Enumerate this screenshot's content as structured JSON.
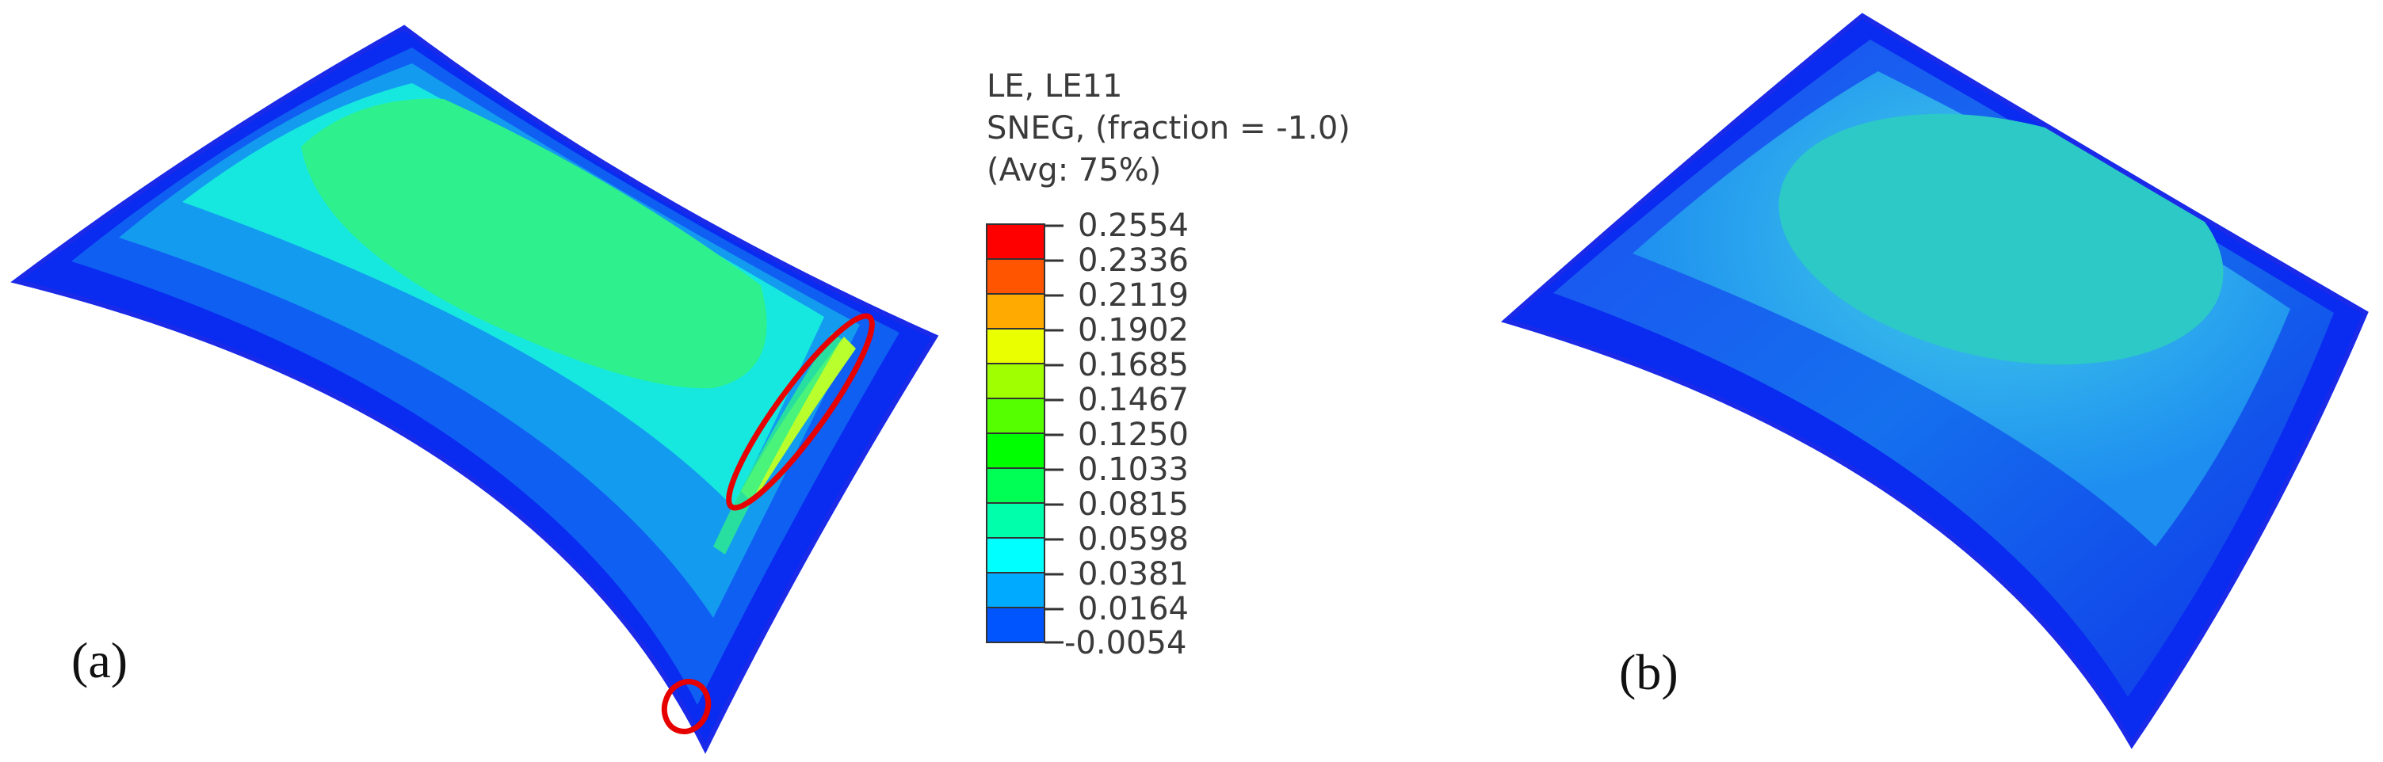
{
  "legend": {
    "header_lines": [
      "LE, LE11",
      "SNEG, (fraction = -1.0)",
      "(Avg: 75%)"
    ],
    "entries": [
      {
        "value": "0.2554",
        "color": "#ff0000"
      },
      {
        "value": "0.2336",
        "color": "#ff5500"
      },
      {
        "value": "0.2119",
        "color": "#ffaa00"
      },
      {
        "value": "0.1902",
        "color": "#eaff00"
      },
      {
        "value": "0.1685",
        "color": "#a0ff00"
      },
      {
        "value": "0.1467",
        "color": "#55ff00"
      },
      {
        "value": "0.1250",
        "color": "#00ff00"
      },
      {
        "value": "0.1033",
        "color": "#00ff55"
      },
      {
        "value": "0.0815",
        "color": "#00ffaa"
      },
      {
        "value": "0.0598",
        "color": "#00ffff"
      },
      {
        "value": "0.0381",
        "color": "#00aaff"
      },
      {
        "value": "0.0164",
        "color": "#0055ff"
      },
      {
        "value": "-0.0054",
        "color": "#0000ff"
      }
    ]
  },
  "panels": {
    "a": {
      "label": "(a)"
    },
    "b": {
      "label": "(b)"
    }
  },
  "colors": {
    "highlight": "#e60000",
    "edge_blue": "#1a2ae8",
    "deep_blue": "#0a2bf0",
    "mid_blue": "#139bf0",
    "cyan": "#16e8e0",
    "light_green": "#2ef08c",
    "yellow_green": "#b9ff2d"
  }
}
